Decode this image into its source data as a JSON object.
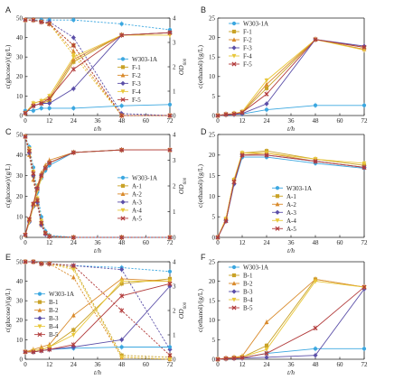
{
  "chart_data": [
    {
      "panel": "A",
      "type": "line",
      "x": [
        0,
        4,
        8,
        12,
        24,
        48,
        72
      ],
      "xlabel": "t/h",
      "ylabel": "c(glucose)/(g/L)",
      "y2label": "OD600",
      "xlim": [
        0,
        72
      ],
      "ylim": [
        0,
        50
      ],
      "y2lim": [
        0,
        4
      ],
      "xticks": [
        0,
        12,
        24,
        36,
        48,
        60,
        72
      ],
      "yticks": [
        0,
        10,
        20,
        30,
        40,
        50
      ],
      "y2ticks": [
        0,
        1,
        2,
        3,
        4
      ],
      "legend": [
        "W303-1A",
        "F-1",
        "F-2",
        "F-3",
        "F-4",
        "F-5"
      ],
      "legend_position": "right-middle",
      "glucose": [
        {
          "name": "W303-1A",
          "values": [
            49,
            49,
            49,
            49,
            49,
            47,
            44
          ]
        },
        {
          "name": "F-1",
          "values": [
            49,
            49,
            48,
            47,
            36,
            0,
            0
          ]
        },
        {
          "name": "F-2",
          "values": [
            49,
            49,
            48,
            47,
            33,
            0,
            0
          ]
        },
        {
          "name": "F-3",
          "values": [
            49,
            49,
            48,
            48,
            40,
            1,
            0
          ]
        },
        {
          "name": "F-4",
          "values": [
            49,
            49,
            48,
            47,
            31,
            0,
            0
          ]
        },
        {
          "name": "F-5",
          "values": [
            49,
            49,
            48,
            47,
            36,
            0,
            0
          ]
        }
      ],
      "od": [
        {
          "name": "W303-1A",
          "values": [
            0.2,
            0.2,
            0.3,
            0.3,
            0.3,
            0.4,
            0.45
          ]
        },
        {
          "name": "F-1",
          "values": [
            0.1,
            0.4,
            0.5,
            0.6,
            2.2,
            3.3,
            3.4
          ]
        },
        {
          "name": "F-2",
          "values": [
            0.1,
            0.5,
            0.6,
            0.7,
            2.3,
            3.3,
            3.4
          ]
        },
        {
          "name": "F-3",
          "values": [
            0.1,
            0.4,
            0.5,
            0.5,
            1.1,
            3.3,
            3.4
          ]
        },
        {
          "name": "F-4",
          "values": [
            0.1,
            0.5,
            0.6,
            0.8,
            2.4,
            3.3,
            3.3
          ]
        },
        {
          "name": "F-5",
          "values": [
            0.1,
            0.4,
            0.5,
            0.7,
            1.9,
            3.3,
            3.4
          ]
        }
      ]
    },
    {
      "panel": "B",
      "type": "line",
      "x": [
        0,
        4,
        8,
        12,
        24,
        48,
        72
      ],
      "xlabel": "t/h",
      "ylabel": "c(ethanol)/(g/L)",
      "xlim": [
        0,
        72
      ],
      "ylim": [
        0,
        25
      ],
      "xticks": [
        0,
        12,
        24,
        36,
        48,
        60,
        72
      ],
      "yticks": [
        0,
        5,
        10,
        15,
        20,
        25
      ],
      "legend": [
        "W303-1A",
        "F-1",
        "F-2",
        "F-3",
        "F-4",
        "F-5"
      ],
      "legend_position": "top-left",
      "series": [
        {
          "name": "W303-1A",
          "values": [
            0,
            0.2,
            0.3,
            0.4,
            1.5,
            2.6,
            2.6
          ]
        },
        {
          "name": "F-1",
          "values": [
            0,
            0.3,
            0.5,
            0.8,
            7.0,
            19.5,
            17.5
          ]
        },
        {
          "name": "F-2",
          "values": [
            0,
            0.3,
            0.5,
            0.8,
            8.0,
            19.5,
            17.0
          ]
        },
        {
          "name": "F-3",
          "values": [
            0,
            0.2,
            0.3,
            0.5,
            3.0,
            19.5,
            17.8
          ]
        },
        {
          "name": "F-4",
          "values": [
            0,
            0.3,
            0.5,
            1.0,
            9.0,
            19.5,
            16.8
          ]
        },
        {
          "name": "F-5",
          "values": [
            0,
            0.3,
            0.4,
            0.8,
            5.5,
            19.5,
            17.5
          ]
        }
      ]
    },
    {
      "panel": "C",
      "type": "line",
      "x": [
        0,
        2,
        4,
        6,
        8,
        10,
        12,
        24,
        48,
        72
      ],
      "xlabel": "t/h",
      "ylabel": "c(glucose)/(g/L)",
      "y2label": "OD600",
      "xlim": [
        0,
        72
      ],
      "ylim": [
        0,
        50
      ],
      "y2lim": [
        0,
        4
      ],
      "xticks": [
        0,
        12,
        24,
        36,
        48,
        60,
        72
      ],
      "yticks": [
        0,
        10,
        20,
        30,
        40,
        50
      ],
      "y2ticks": [
        0,
        1,
        2,
        3,
        4
      ],
      "legend": [
        "W303-1A",
        "A-1",
        "A-2",
        "A-3",
        "A-4",
        "A-5"
      ],
      "legend_position": "right-middle",
      "glucose": [
        {
          "name": "W303-1A",
          "values": [
            49,
            44,
            34,
            22,
            10,
            3,
            1,
            0,
            0,
            0
          ]
        },
        {
          "name": "A-1",
          "values": [
            49,
            42,
            30,
            18,
            7,
            2,
            0.5,
            0,
            0,
            0
          ]
        },
        {
          "name": "A-2",
          "values": [
            49,
            40,
            28,
            16,
            6,
            2,
            0.5,
            0,
            0,
            0
          ]
        },
        {
          "name": "A-3",
          "values": [
            49,
            41,
            30,
            17,
            6,
            1.5,
            0.5,
            0,
            0,
            0
          ]
        },
        {
          "name": "A-4",
          "values": [
            49,
            43,
            32,
            19,
            8,
            2,
            0.5,
            0,
            0,
            0
          ]
        },
        {
          "name": "A-5",
          "values": [
            49,
            42,
            31,
            18,
            7,
            2,
            0.5,
            0,
            0,
            0
          ]
        }
      ],
      "od": [
        {
          "name": "W303-1A",
          "values": [
            0.1,
            0.6,
            1.2,
            1.8,
            2.3,
            2.6,
            2.8,
            3.3,
            3.4,
            3.4
          ]
        },
        {
          "name": "A-1",
          "values": [
            0.1,
            0.7,
            1.3,
            1.9,
            2.4,
            2.7,
            2.9,
            3.3,
            3.4,
            3.4
          ]
        },
        {
          "name": "A-2",
          "values": [
            0.1,
            0.7,
            1.3,
            2.0,
            2.5,
            2.8,
            3.0,
            3.3,
            3.4,
            3.4
          ]
        },
        {
          "name": "A-3",
          "values": [
            0.1,
            0.6,
            1.2,
            1.9,
            2.4,
            2.7,
            2.9,
            3.3,
            3.4,
            3.4
          ]
        },
        {
          "name": "A-4",
          "values": [
            0.1,
            0.6,
            1.2,
            1.8,
            2.3,
            2.7,
            2.9,
            3.3,
            3.4,
            3.4
          ]
        },
        {
          "name": "A-5",
          "values": [
            0.1,
            0.7,
            1.3,
            1.9,
            2.4,
            2.7,
            2.9,
            3.3,
            3.4,
            3.4
          ]
        }
      ]
    },
    {
      "panel": "D",
      "type": "line",
      "x": [
        0,
        4,
        8,
        12,
        24,
        48,
        72
      ],
      "xlabel": "t/h",
      "ylabel": "c(ethanol)/(g/L)",
      "xlim": [
        0,
        72
      ],
      "ylim": [
        0,
        25
      ],
      "xticks": [
        0,
        12,
        24,
        36,
        48,
        60,
        72
      ],
      "yticks": [
        0,
        5,
        10,
        15,
        20,
        25
      ],
      "legend": [
        "W303-1A",
        "A-1",
        "A-2",
        "A-3",
        "A-4",
        "A-5"
      ],
      "legend_position": "bottom-left",
      "series": [
        {
          "name": "W303-1A",
          "values": [
            0,
            4,
            13,
            19.5,
            19.5,
            18,
            16.8
          ]
        },
        {
          "name": "A-1",
          "values": [
            0,
            4.5,
            14,
            20.5,
            21,
            19,
            17.5
          ]
        },
        {
          "name": "A-2",
          "values": [
            0,
            4.5,
            14,
            20,
            20.5,
            18.5,
            17.0
          ]
        },
        {
          "name": "A-3",
          "values": [
            0,
            4,
            13,
            20,
            20,
            18.5,
            17.0
          ]
        },
        {
          "name": "A-4",
          "values": [
            0,
            4.5,
            14,
            20.5,
            20.5,
            19,
            18.0
          ]
        },
        {
          "name": "A-5",
          "values": [
            0,
            4,
            13.5,
            20,
            20,
            18.5,
            17.0
          ]
        }
      ]
    },
    {
      "panel": "E",
      "type": "line",
      "x": [
        0,
        4,
        8,
        12,
        24,
        48,
        72
      ],
      "xlabel": "t/h",
      "ylabel": "c(glucose)/(g/L)",
      "y2label": "OD600",
      "xlim": [
        0,
        72
      ],
      "ylim": [
        0,
        50
      ],
      "y2lim": [
        0,
        4
      ],
      "xticks": [
        0,
        12,
        24,
        36,
        48,
        60,
        72
      ],
      "yticks": [
        0,
        10,
        20,
        30,
        40,
        50
      ],
      "y2ticks": [
        0,
        1,
        2,
        3,
        4
      ],
      "legend": [
        "W303-1A",
        "B-1",
        "B-2",
        "B-3",
        "B-4",
        "B-5"
      ],
      "legend_position": "left-middle",
      "glucose": [
        {
          "name": "W303-1A",
          "values": [
            50,
            50,
            49,
            49,
            48,
            47,
            45
          ]
        },
        {
          "name": "B-1",
          "values": [
            50,
            50,
            49,
            49,
            47,
            2,
            1
          ]
        },
        {
          "name": "B-2",
          "values": [
            50,
            50,
            49,
            49,
            42,
            1,
            0
          ]
        },
        {
          "name": "B-3",
          "values": [
            50,
            50,
            49,
            49,
            48,
            46,
            5
          ]
        },
        {
          "name": "B-4",
          "values": [
            50,
            50,
            49,
            49,
            46,
            1,
            0
          ]
        },
        {
          "name": "B-5",
          "values": [
            50,
            50,
            49,
            49,
            48,
            25,
            2
          ]
        }
      ],
      "od": [
        {
          "name": "W303-1A",
          "values": [
            0.3,
            0.3,
            0.35,
            0.4,
            0.45,
            0.5,
            0.5
          ]
        },
        {
          "name": "B-1",
          "values": [
            0.3,
            0.35,
            0.4,
            0.5,
            1.2,
            3.1,
            3.3
          ]
        },
        {
          "name": "B-2",
          "values": [
            0.3,
            0.4,
            0.5,
            0.6,
            1.8,
            3.3,
            3.2
          ]
        },
        {
          "name": "B-3",
          "values": [
            0.3,
            0.3,
            0.35,
            0.4,
            0.5,
            0.8,
            3.0
          ]
        },
        {
          "name": "B-4",
          "values": [
            0.3,
            0.35,
            0.4,
            0.5,
            1.0,
            3.2,
            3.2
          ]
        },
        {
          "name": "B-5",
          "values": [
            0.3,
            0.3,
            0.35,
            0.4,
            0.6,
            2.6,
            3.1
          ]
        }
      ]
    },
    {
      "panel": "F",
      "type": "line",
      "x": [
        0,
        4,
        8,
        12,
        24,
        48,
        72
      ],
      "xlabel": "t/h",
      "ylabel": "c(ethanol)/(g/L)",
      "xlim": [
        0,
        72
      ],
      "ylim": [
        0,
        25
      ],
      "xticks": [
        0,
        12,
        24,
        36,
        48,
        60,
        72
      ],
      "yticks": [
        0,
        5,
        10,
        15,
        20,
        25
      ],
      "legend": [
        "W303-1A",
        "B-1",
        "B-2",
        "B-3",
        "B-4",
        "B-5"
      ],
      "legend_position": "top-left",
      "series": [
        {
          "name": "W303-1A",
          "values": [
            0,
            0.2,
            0.3,
            0.4,
            1.5,
            2.7,
            2.7
          ]
        },
        {
          "name": "B-1",
          "values": [
            0,
            0.2,
            0.3,
            0.5,
            3.5,
            20.5,
            18.5
          ]
        },
        {
          "name": "B-2",
          "values": [
            0,
            0.3,
            0.5,
            0.8,
            9.5,
            20.5,
            18.5
          ]
        },
        {
          "name": "B-3",
          "values": [
            0,
            0.1,
            0.2,
            0.3,
            0.5,
            1.0,
            18.0
          ]
        },
        {
          "name": "B-4",
          "values": [
            0,
            0.2,
            0.4,
            0.6,
            2.5,
            20.0,
            18.5
          ]
        },
        {
          "name": "B-5",
          "values": [
            0,
            0.2,
            0.3,
            0.4,
            1.5,
            8.0,
            18.5
          ]
        }
      ]
    }
  ],
  "series_colors": [
    "#3ba7e0",
    "#c9a227",
    "#d98a2b",
    "#5b4fa8",
    "#e8c73a",
    "#b23b3b"
  ],
  "od_sub": "600"
}
